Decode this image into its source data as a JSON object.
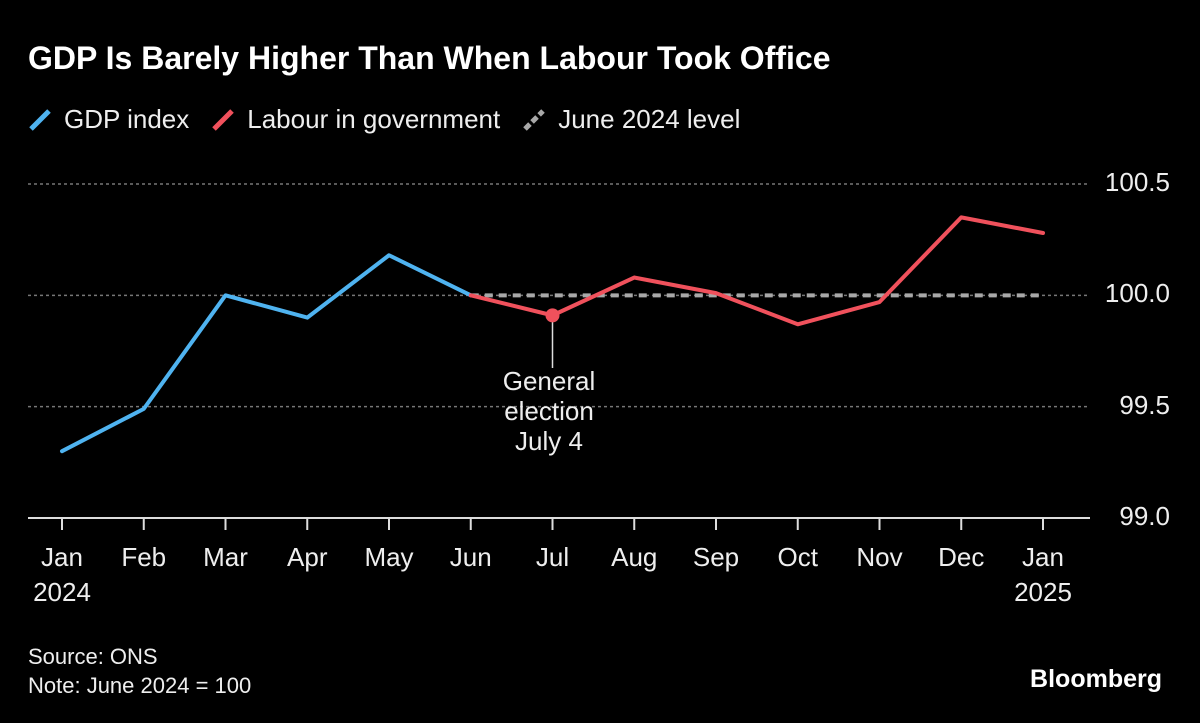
{
  "chart_data": {
    "type": "line",
    "title": "GDP Is Barely Higher Than When Labour Took Office",
    "categories": [
      "Jan\n2024",
      "Feb",
      "Mar",
      "Apr",
      "May",
      "Jun",
      "Jul",
      "Aug",
      "Sep",
      "Oct",
      "Nov",
      "Dec",
      "Jan\n2025"
    ],
    "series": [
      {
        "name": "GDP index",
        "color": "#4fb3f0",
        "style": "solid",
        "values": [
          99.3,
          99.49,
          100.0,
          99.9,
          100.18,
          100.0,
          null,
          null,
          null,
          null,
          null,
          null,
          null
        ]
      },
      {
        "name": "Labour in government",
        "color": "#f0515c",
        "style": "solid",
        "values": [
          null,
          null,
          null,
          null,
          null,
          100.0,
          99.91,
          100.08,
          100.01,
          99.87,
          99.97,
          100.35,
          100.28
        ]
      },
      {
        "name": "June 2024 level",
        "color": "#a8a8a8",
        "style": "dashed",
        "values": [
          null,
          null,
          null,
          null,
          null,
          100,
          100,
          100,
          100,
          100,
          100,
          100,
          100
        ]
      }
    ],
    "ylim": [
      99.0,
      100.5
    ],
    "yticks": [
      {
        "value": 99,
        "label": "99.0"
      },
      99.5,
      {
        "value": 100,
        "label": "100.0"
      },
      100.5
    ],
    "grid": true,
    "annotation": "General\nelection\nJuly 4",
    "source": "Source: ONS",
    "note": "Note: June 2024 = 100",
    "brand": "Bloomberg"
  }
}
